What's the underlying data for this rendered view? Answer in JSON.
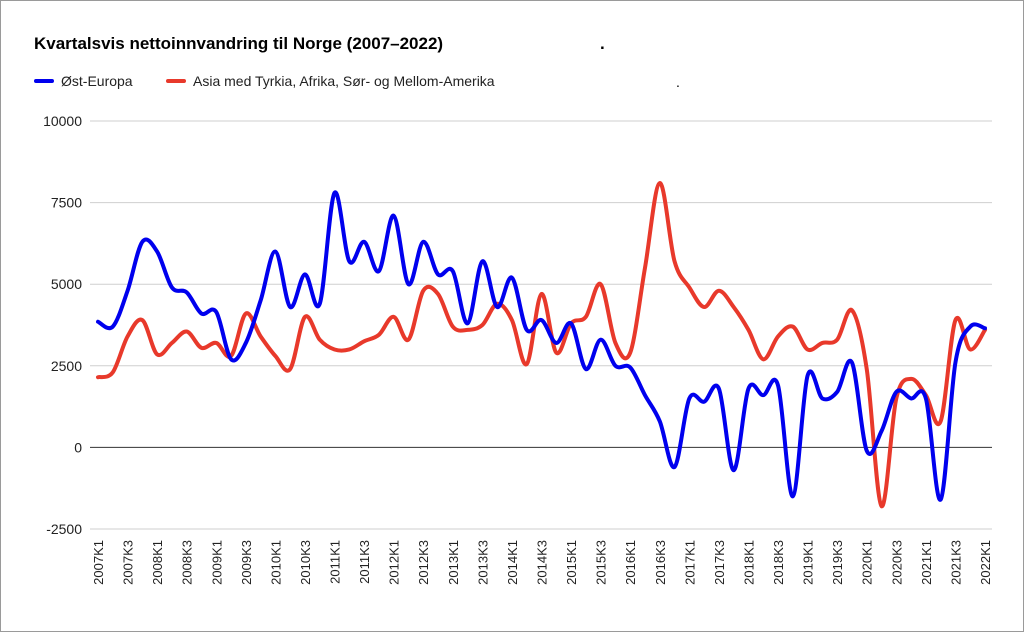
{
  "chart_data": {
    "type": "line",
    "title": "Kvartalsvis nettoinnvandring til Norge (2007–2022)",
    "title_trailing": ".",
    "legend_trailing": ".",
    "legend_position": "top-left",
    "xlabel": "",
    "ylabel": "",
    "ylim": [
      -2500,
      10000
    ],
    "yticks": [
      -2500,
      0,
      2500,
      5000,
      7500,
      10000
    ],
    "ytick_labels": [
      "-2500",
      "0",
      "2500",
      "5000",
      "7500",
      "10000"
    ],
    "grid": true,
    "x_tick_labels": [
      "2007K1",
      "2007K3",
      "2008K1",
      "2008K3",
      "2009K1",
      "2009K3",
      "2010K1",
      "2010K3",
      "2011K1",
      "2011K3",
      "2012K1",
      "2012K3",
      "2013K1",
      "2013K3",
      "2014K1",
      "2014K3",
      "2015K1",
      "2015K3",
      "2016K1",
      "2016K3",
      "2017K1",
      "2017K3",
      "2018K1",
      "2018K3",
      "2019K1",
      "2019K3",
      "2020K1",
      "2020K3",
      "2021K1",
      "2021K3",
      "2022K1"
    ],
    "series": [
      {
        "name": "Øst-Europa",
        "color": "#0000ee",
        "values": [
          3850,
          3700,
          4800,
          6300,
          6000,
          4900,
          4750,
          4100,
          4150,
          2700,
          3200,
          4500,
          6000,
          4300,
          5300,
          4400,
          7800,
          5700,
          6300,
          5400,
          7100,
          5000,
          6300,
          5300,
          5400,
          3800,
          5700,
          4300,
          5200,
          3600,
          3900,
          3200,
          3800,
          2400,
          3300,
          2500,
          2450,
          1600,
          800,
          -600,
          1500,
          1400,
          1800,
          -700,
          1800,
          1600,
          1900,
          -1500,
          2200,
          1500,
          1700,
          2600,
          -100,
          500,
          1700,
          1500,
          1500,
          -1600,
          2600,
          3700,
          3650
        ]
      },
      {
        "name": "Asia med Tyrkia, Afrika, Sør- og Mellom-Amerika",
        "color": "#e8392b",
        "values": [
          2150,
          2300,
          3400,
          3900,
          2850,
          3200,
          3550,
          3050,
          3200,
          2800,
          4100,
          3400,
          2800,
          2400,
          4000,
          3300,
          3000,
          3000,
          3250,
          3450,
          4000,
          3300,
          4800,
          4700,
          3700,
          3600,
          3750,
          4400,
          3900,
          2550,
          4700,
          2900,
          3800,
          4000,
          5000,
          3200,
          2900,
          5500,
          8100,
          5700,
          4900,
          4300,
          4800,
          4300,
          3600,
          2700,
          3400,
          3700,
          3000,
          3200,
          3300,
          4200,
          2400,
          -1800,
          1500,
          2100,
          1600,
          800,
          3900,
          3000,
          3600
        ]
      }
    ]
  }
}
